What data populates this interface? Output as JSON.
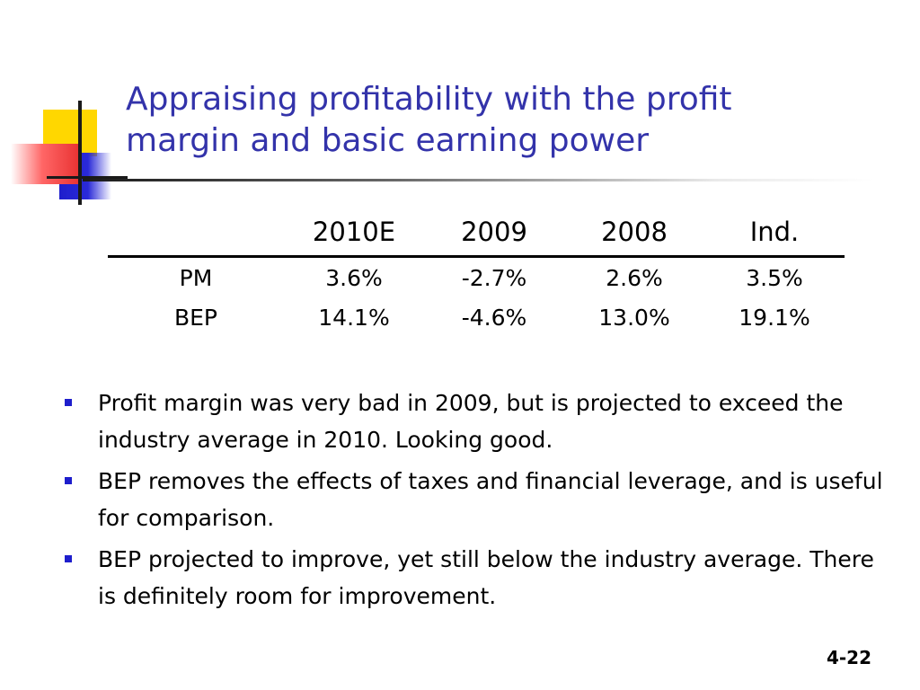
{
  "slide": {
    "title_lines": [
      "Appraising profitability with the profit",
      "margin and basic earning power"
    ],
    "table": {
      "headers": [
        "",
        "2010E",
        "2009",
        "2008",
        "Ind."
      ],
      "rows": [
        {
          "label": "PM",
          "values": [
            "3.6%",
            "-2.7%",
            "2.6%",
            "3.5%"
          ]
        },
        {
          "label": "BEP",
          "values": [
            "14.1%",
            "-4.6%",
            "13.0%",
            "19.1%"
          ]
        }
      ]
    },
    "bullets": [
      "Profit margin was very bad in 2009, but is projected to exceed the industry average in 2010.  Looking good.",
      "BEP removes the effects of taxes and financial leverage, and is useful for comparison.",
      "BEP projected to improve, yet still below the industry average.  There is definitely room for improvement."
    ],
    "page_number": "4-22"
  },
  "colors": {
    "title": "#3333AA",
    "bullet_marker": "#1E1ECC",
    "logo_yellow": "#FFD700",
    "logo_blue": "#1E1ECC",
    "logo_red": "#E83030"
  },
  "icons": {
    "logo": "colored-squares-logo",
    "bullet": "square-bullet-icon"
  }
}
